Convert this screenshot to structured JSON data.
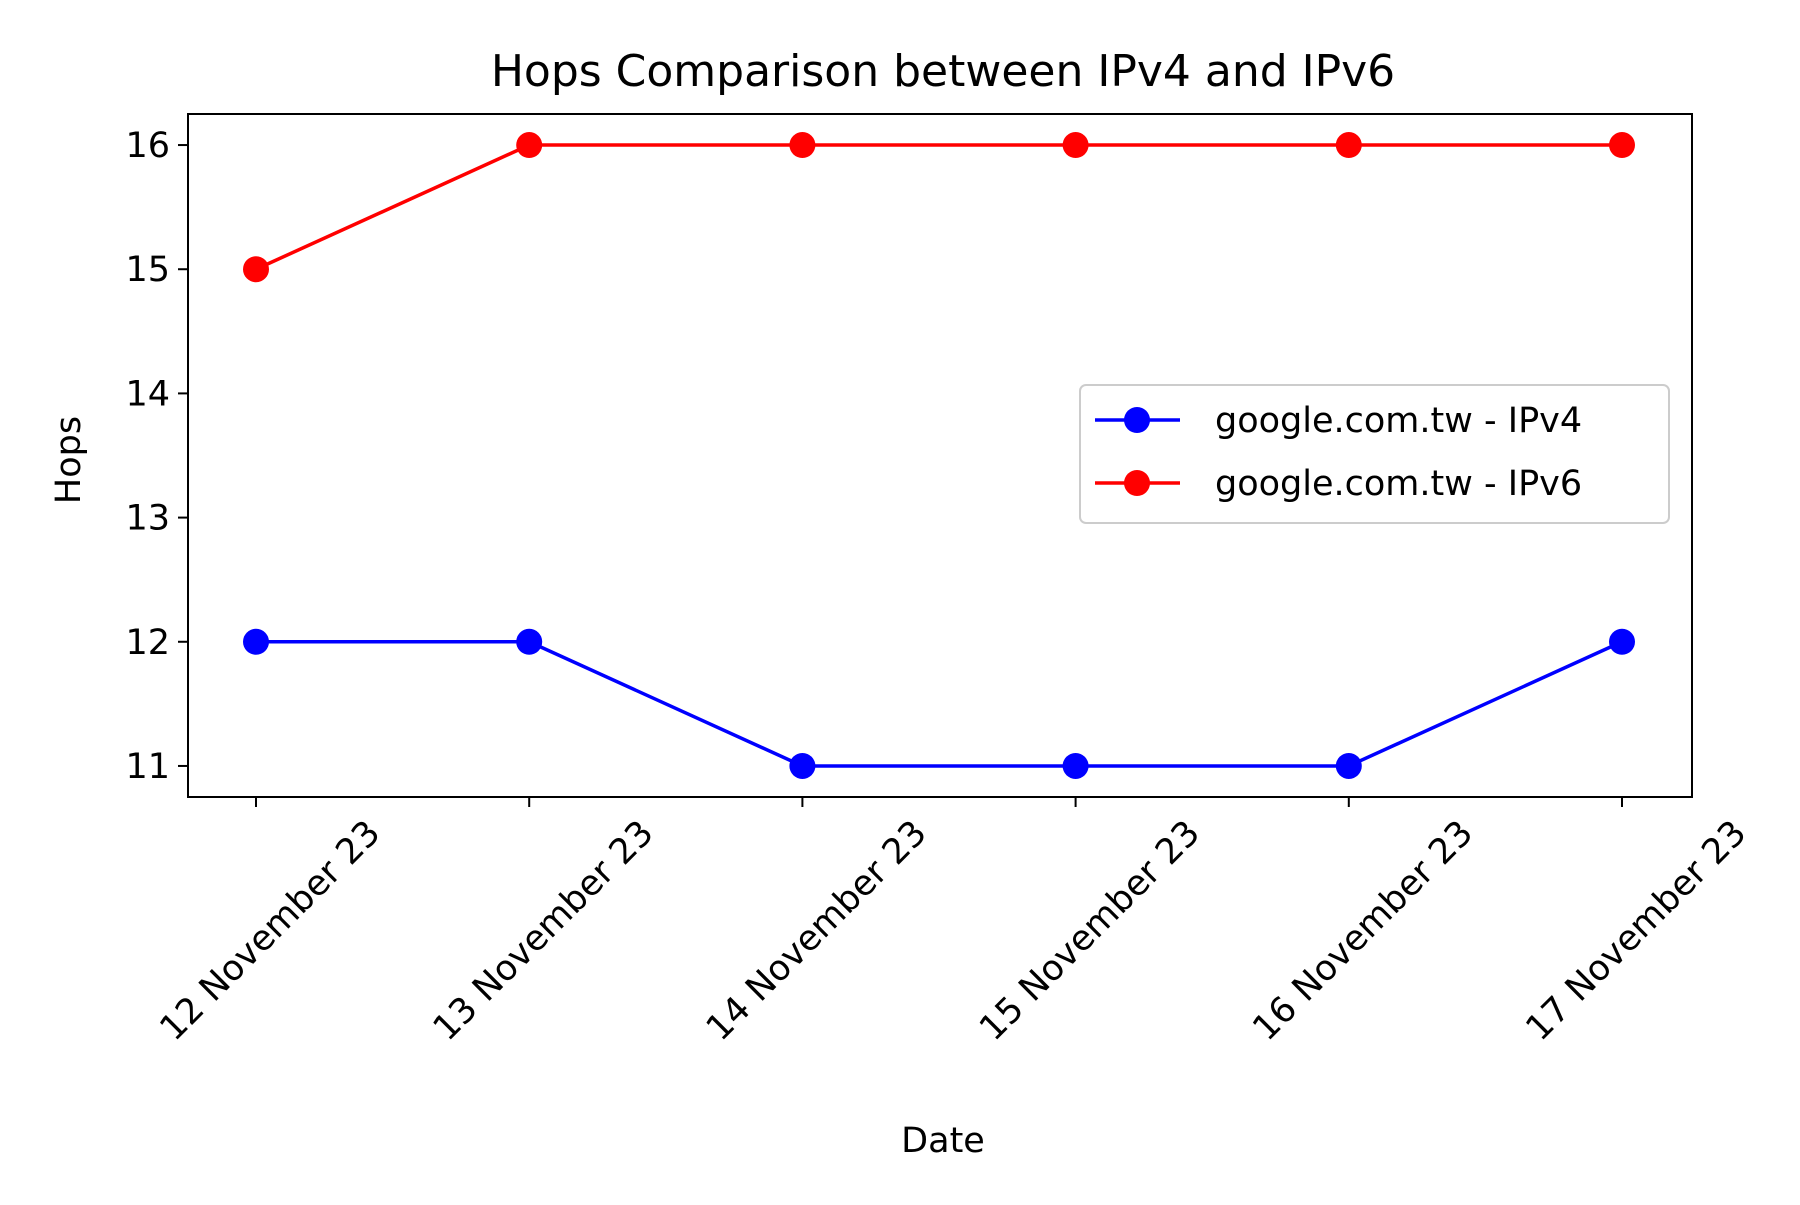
{
  "chart_data": {
    "type": "line",
    "title": "Hops Comparison between IPv4 and IPv6",
    "xlabel": "Date",
    "ylabel": "Hops",
    "categories": [
      "12 November 23",
      "13 November 23",
      "14 November 23",
      "15 November 23",
      "16 November 23",
      "17 November 23"
    ],
    "yticks": [
      11,
      12,
      13,
      14,
      15,
      16
    ],
    "ylim": [
      10.75,
      16.25
    ],
    "grid": false,
    "legend_position": "center-right",
    "series": [
      {
        "name": "google.com.tw - IPv4",
        "color": "#0000ff",
        "marker": "circle",
        "values": [
          12,
          12,
          11,
          11,
          11,
          12
        ]
      },
      {
        "name": "google.com.tw - IPv6",
        "color": "#ff0000",
        "marker": "circle",
        "values": [
          15,
          16,
          16,
          16,
          16,
          16
        ]
      }
    ]
  }
}
